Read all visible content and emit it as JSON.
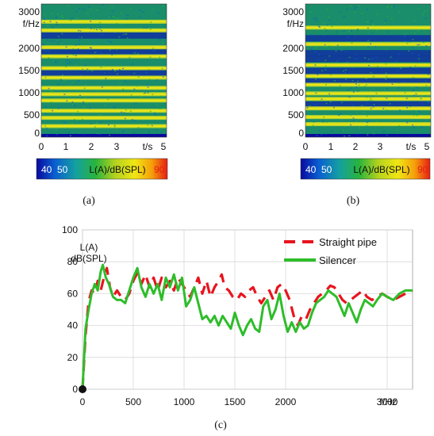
{
  "panels": {
    "a": {
      "label": "(a)"
    },
    "b": {
      "label": "(b)"
    },
    "c": {
      "label": "(c)"
    }
  },
  "spectrogram": {
    "x_ticks": [
      "0",
      "1",
      "2",
      "3",
      "5"
    ],
    "x_unit": "t/s",
    "y_ticks": [
      "0",
      "500",
      "1000",
      "1500",
      "2000",
      "3000"
    ],
    "y_unit": "f/Hz",
    "colorbar": {
      "min_label": "40",
      "mid_label": "50",
      "max_label": "90",
      "title": "L(A)/dB(SPL)",
      "colors": [
        "#0a0aa0",
        "#0a5fd0",
        "#14a0a0",
        "#28b43c",
        "#b4d21e",
        "#f0e614",
        "#f5a00a",
        "#e61e14"
      ]
    },
    "a_bright_freqs_hz": [
      150,
      360,
      540,
      800,
      960,
      1120,
      1380,
      1620,
      1920,
      2150,
      2580,
      2800
    ],
    "b_bright_freqs_hz": [
      200,
      380,
      600,
      840,
      980,
      1200,
      1420,
      1700,
      2230,
      2650
    ]
  },
  "chart_data": [
    {
      "type": "heatmap",
      "panel": "(a)",
      "xlabel": "t/s",
      "ylabel": "f/Hz",
      "xlim": [
        0,
        5
      ],
      "ylim": [
        -130,
        3250
      ],
      "colorbar_label": "L(A)/dB(SPL)",
      "colorbar_range": [
        40,
        90
      ]
    },
    {
      "type": "heatmap",
      "panel": "(b)",
      "xlabel": "t/s",
      "ylabel": "f/Hz",
      "xlim": [
        0,
        5
      ],
      "ylim": [
        -130,
        3250
      ],
      "colorbar_label": "L(A)/dB(SPL)",
      "colorbar_range": [
        40,
        90
      ]
    },
    {
      "type": "line",
      "panel": "(c)",
      "xlabel": "f/Hz",
      "ylabel": "L(A) dB(SPL)",
      "xlim": [
        0,
        3250
      ],
      "ylim": [
        0,
        100
      ],
      "x_ticks": [
        "0",
        "500",
        "1000",
        "1500",
        "2000",
        "3000"
      ],
      "x_tick_positions": [
        0,
        500,
        1000,
        1500,
        2000,
        3000
      ],
      "y_ticks": [
        "0",
        "20",
        "40",
        "60",
        "80",
        "100"
      ],
      "y_tick_positions": [
        0,
        20,
        40,
        60,
        80,
        100
      ],
      "grid": true,
      "legend_position": "top-right",
      "series": [
        {
          "name": "Straight pipe",
          "color": "#e8141e",
          "style": "dashed",
          "points": [
            [
              0,
              0
            ],
            [
              30,
              34
            ],
            [
              60,
              55
            ],
            [
              90,
              62
            ],
            [
              120,
              60
            ],
            [
              150,
              68
            ],
            [
              180,
              62
            ],
            [
              210,
              70
            ],
            [
              240,
              76
            ],
            [
              270,
              64
            ],
            [
              300,
              58
            ],
            [
              340,
              62
            ],
            [
              380,
              58
            ],
            [
              420,
              56
            ],
            [
              460,
              60
            ],
            [
              500,
              68
            ],
            [
              540,
              73
            ],
            [
              580,
              66
            ],
            [
              620,
              72
            ],
            [
              660,
              64
            ],
            [
              700,
              70
            ],
            [
              740,
              62
            ],
            [
              780,
              70
            ],
            [
              820,
              64
            ],
            [
              860,
              68
            ],
            [
              900,
              62
            ],
            [
              940,
              70
            ],
            [
              980,
              66
            ],
            [
              1020,
              62
            ],
            [
              1060,
              58
            ],
            [
              1100,
              64
            ],
            [
              1140,
              70
            ],
            [
              1180,
              60
            ],
            [
              1220,
              68
            ],
            [
              1260,
              58
            ],
            [
              1300,
              64
            ],
            [
              1340,
              68
            ],
            [
              1370,
              72
            ],
            [
              1400,
              64
            ],
            [
              1440,
              62
            ],
            [
              1480,
              58
            ],
            [
              1520,
              56
            ],
            [
              1560,
              60
            ],
            [
              1600,
              58
            ],
            [
              1640,
              62
            ],
            [
              1680,
              64
            ],
            [
              1720,
              58
            ],
            [
              1760,
              54
            ],
            [
              1800,
              58
            ],
            [
              1840,
              62
            ],
            [
              1880,
              56
            ],
            [
              1920,
              64
            ],
            [
              1960,
              66
            ],
            [
              2000,
              62
            ],
            [
              2040,
              56
            ],
            [
              2080,
              46
            ],
            [
              2120,
              40
            ],
            [
              2160,
              46
            ],
            [
              2200,
              44
            ],
            [
              2240,
              50
            ],
            [
              2280,
              54
            ],
            [
              2320,
              58
            ],
            [
              2360,
              60
            ],
            [
              2400,
              62
            ],
            [
              2440,
              65
            ],
            [
              2480,
              64
            ],
            [
              2520,
              60
            ],
            [
              2560,
              56
            ],
            [
              2600,
              54
            ],
            [
              2640,
              56
            ],
            [
              2680,
              58
            ],
            [
              2720,
              60
            ],
            [
              2760,
              62
            ],
            [
              2800,
              58
            ],
            [
              2850,
              56
            ],
            [
              2900,
              58
            ],
            [
              2950,
              60
            ],
            [
              3000,
              58
            ],
            [
              3060,
              56
            ],
            [
              3120,
              58
            ],
            [
              3180,
              60
            ],
            [
              3250,
              62
            ]
          ]
        },
        {
          "name": "Silencer",
          "color": "#2ebd2a",
          "style": "solid",
          "points": [
            [
              0,
              0
            ],
            [
              30,
              38
            ],
            [
              60,
              50
            ],
            [
              90,
              60
            ],
            [
              120,
              66
            ],
            [
              150,
              62
            ],
            [
              180,
              74
            ],
            [
              200,
              78
            ],
            [
              230,
              70
            ],
            [
              260,
              66
            ],
            [
              300,
              58
            ],
            [
              340,
              56
            ],
            [
              380,
              56
            ],
            [
              420,
              54
            ],
            [
              460,
              62
            ],
            [
              500,
              70
            ],
            [
              540,
              76
            ],
            [
              580,
              64
            ],
            [
              620,
              58
            ],
            [
              660,
              66
            ],
            [
              700,
              60
            ],
            [
              740,
              66
            ],
            [
              780,
              56
            ],
            [
              820,
              70
            ],
            [
              860,
              64
            ],
            [
              900,
              72
            ],
            [
              940,
              62
            ],
            [
              980,
              70
            ],
            [
              1020,
              52
            ],
            [
              1060,
              56
            ],
            [
              1100,
              64
            ],
            [
              1140,
              54
            ],
            [
              1180,
              44
            ],
            [
              1220,
              46
            ],
            [
              1260,
              42
            ],
            [
              1300,
              46
            ],
            [
              1340,
              40
            ],
            [
              1380,
              46
            ],
            [
              1420,
              42
            ],
            [
              1460,
              38
            ],
            [
              1500,
              48
            ],
            [
              1540,
              40
            ],
            [
              1580,
              34
            ],
            [
              1620,
              40
            ],
            [
              1660,
              44
            ],
            [
              1700,
              38
            ],
            [
              1740,
              36
            ],
            [
              1780,
              52
            ],
            [
              1820,
              56
            ],
            [
              1860,
              44
            ],
            [
              1900,
              50
            ],
            [
              1940,
              60
            ],
            [
              1980,
              46
            ],
            [
              2020,
              36
            ],
            [
              2060,
              42
            ],
            [
              2100,
              36
            ],
            [
              2140,
              42
            ],
            [
              2180,
              38
            ],
            [
              2220,
              40
            ],
            [
              2260,
              48
            ],
            [
              2300,
              54
            ],
            [
              2340,
              56
            ],
            [
              2380,
              58
            ],
            [
              2420,
              62
            ],
            [
              2460,
              60
            ],
            [
              2500,
              58
            ],
            [
              2540,
              52
            ],
            [
              2580,
              46
            ],
            [
              2620,
              54
            ],
            [
              2660,
              48
            ],
            [
              2700,
              42
            ],
            [
              2740,
              50
            ],
            [
              2780,
              56
            ],
            [
              2820,
              54
            ],
            [
              2860,
              52
            ],
            [
              2900,
              56
            ],
            [
              2950,
              60
            ],
            [
              3000,
              58
            ],
            [
              3060,
              56
            ],
            [
              3120,
              60
            ],
            [
              3180,
              62
            ],
            [
              3250,
              62
            ]
          ]
        }
      ]
    }
  ]
}
